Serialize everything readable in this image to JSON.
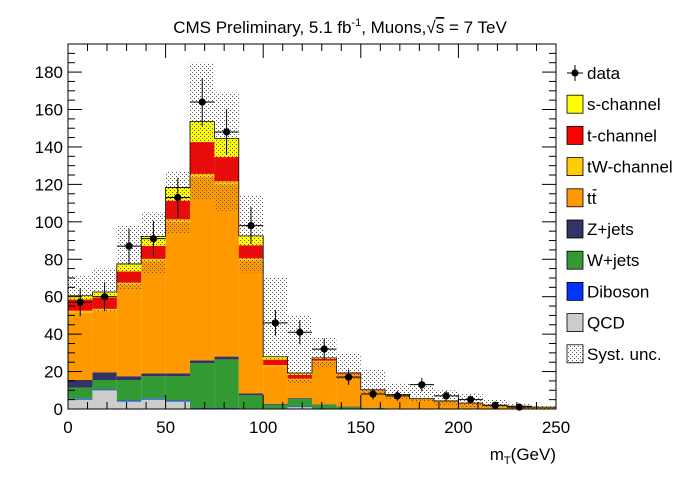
{
  "chart_data": {
    "type": "bar",
    "title": "CMS Preliminary, 5.1 fb",
    "title_parts": {
      "prefix": "CMS Preliminary, 5.1 fb",
      "superscript": "-1",
      "middle": ", Muons,",
      "sqrt_sym": "√",
      "sqrt_arg": "s",
      "suffix": " = 7 TeV"
    },
    "xlabel": "m",
    "xlabel_parts": {
      "main": "m",
      "sub": "T",
      "unit": "(GeV)"
    },
    "ylabel": "",
    "xlim": [
      0,
      250
    ],
    "ylim": [
      0,
      195
    ],
    "x_ticks": [
      "0",
      "50",
      "100",
      "150",
      "200",
      "250"
    ],
    "y_ticks": [
      "0",
      "20",
      "40",
      "60",
      "80",
      "100",
      "120",
      "140",
      "160",
      "180"
    ],
    "bin_edges": [
      0,
      12.5,
      25,
      37.5,
      50,
      62.5,
      75,
      87.5,
      100,
      112.5,
      125,
      137.5,
      150,
      162.5,
      175,
      187.5,
      200,
      212.5,
      225,
      237.5,
      250
    ],
    "stack_order": [
      "QCD",
      "Diboson",
      "W+jets",
      "Z+jets",
      "tt",
      "tW-channel",
      "t-channel",
      "s-channel"
    ],
    "series": [
      {
        "name": "QCD",
        "color": "#cccccc",
        "values": [
          5,
          10,
          4,
          5,
          4,
          0,
          0,
          0,
          0,
          1,
          0,
          0,
          0,
          0,
          0,
          0,
          0,
          0,
          0,
          0
        ]
      },
      {
        "name": "Diboson",
        "color": "#0033ff",
        "values": [
          0.5,
          0.5,
          0.5,
          0.5,
          0.5,
          0.5,
          0.5,
          0.3,
          0.3,
          0.3,
          0.2,
          0.1,
          0.1,
          0,
          0,
          0,
          0,
          0,
          0,
          0
        ]
      },
      {
        "name": "W+jets",
        "color": "#339933",
        "values": [
          6,
          5,
          11,
          12,
          13,
          24,
          26,
          7,
          2,
          4,
          2,
          1,
          0.5,
          0.3,
          0.2,
          0.1,
          0.1,
          0,
          0,
          0
        ]
      },
      {
        "name": "Z+jets",
        "color": "#333366",
        "values": [
          4,
          4,
          2,
          1.5,
          1.5,
          1.5,
          1.5,
          1,
          0.5,
          0.5,
          0.3,
          0.2,
          0.1,
          0,
          0,
          0,
          0,
          0,
          0,
          0
        ]
      },
      {
        "name": "tt",
        "color": "#ff9900",
        "values": [
          36,
          33,
          49,
          60,
          81,
          98,
          92,
          71,
          20,
          10,
          23,
          17,
          9,
          7,
          5,
          4,
          3,
          2,
          1.5,
          1
        ]
      },
      {
        "name": "tW-channel",
        "color": "#ffcc00",
        "values": [
          1,
          1,
          1,
          1.2,
          1.3,
          1.6,
          1.6,
          1.2,
          0.6,
          0.4,
          0.3,
          0.2,
          0.1,
          0.1,
          0.1,
          0,
          0,
          0,
          0,
          0
        ]
      },
      {
        "name": "t-channel",
        "color": "#ff0000",
        "values": [
          6,
          6,
          6,
          7,
          10,
          17,
          13,
          7,
          3,
          2,
          1,
          0.5,
          0.3,
          0.2,
          0.1,
          0.1,
          0.1,
          0,
          0,
          0
        ]
      },
      {
        "name": "s-channel",
        "color": "#ffff00",
        "values": [
          2,
          3,
          4,
          5,
          7,
          11,
          10,
          5,
          1.5,
          1,
          0.5,
          0.3,
          0.2,
          0.1,
          0.1,
          0.1,
          0,
          0,
          0,
          0
        ]
      }
    ],
    "syst_unc": {
      "name": "Syst. unc.",
      "up": [
        71,
        75,
        98,
        105,
        127,
        185,
        169,
        114,
        70,
        50,
        38,
        30,
        21,
        14,
        13,
        10,
        8,
        5,
        3,
        2
      ],
      "down": [
        54,
        52,
        64,
        72,
        94,
        112,
        106,
        73,
        25,
        14,
        22,
        16,
        8,
        5,
        4,
        2,
        1,
        0.5,
        0,
        0
      ]
    },
    "data": {
      "name": "data",
      "y": [
        57,
        60,
        87,
        91,
        113,
        164,
        148,
        98,
        46,
        41,
        32,
        17,
        8,
        7,
        13,
        7,
        5,
        2,
        1,
        0
      ],
      "err": [
        7.5,
        7.7,
        9.3,
        9.5,
        10.6,
        12.8,
        12.2,
        9.9,
        6.8,
        6.4,
        5.7,
        4.1,
        2.8,
        2.6,
        3.6,
        2.6,
        2.2,
        1.4,
        1,
        0
      ]
    },
    "legend": {
      "placement": "right",
      "entries": [
        {
          "key": "data",
          "label": "data",
          "marker": "point"
        },
        {
          "key": "s-channel",
          "label": "s-channel",
          "color": "#ffff00"
        },
        {
          "key": "t-channel",
          "label": "t-channel",
          "color": "#ff0000"
        },
        {
          "key": "tW-channel",
          "label": "tW-channel",
          "color": "#ffcc00"
        },
        {
          "key": "tt",
          "label": "tt",
          "color": "#ff9900",
          "overline": true
        },
        {
          "key": "Z+jets",
          "label": "Z+jets",
          "color": "#333366"
        },
        {
          "key": "W+jets",
          "label": "W+jets",
          "color": "#339933"
        },
        {
          "key": "Diboson",
          "label": "Diboson",
          "color": "#0033ff"
        },
        {
          "key": "QCD",
          "label": "QCD",
          "color": "#cccccc"
        },
        {
          "key": "syst",
          "label": "Syst. unc.",
          "pattern": "dots"
        }
      ]
    },
    "grid": false
  }
}
